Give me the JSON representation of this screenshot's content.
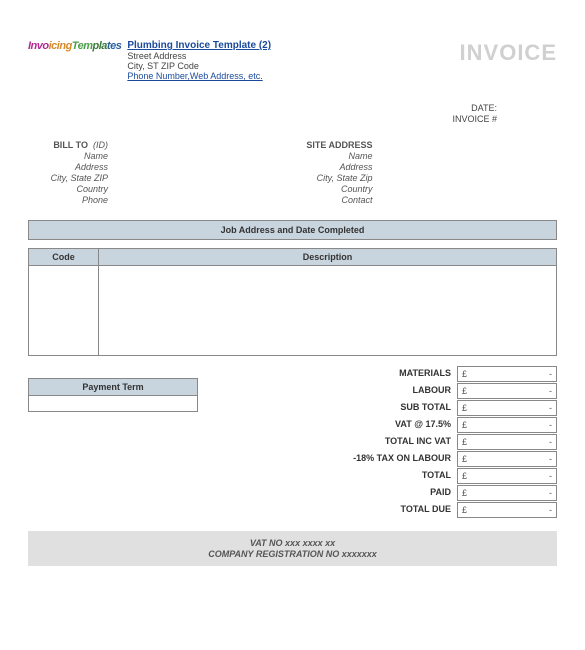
{
  "header": {
    "title": "Plumbing Invoice Template (2)",
    "street": "Street Address",
    "city_line": "City, ST  ZIP Code",
    "contact_link": "Phone Number,Web Address, etc.",
    "invoice_word": "INVOICE"
  },
  "meta": {
    "date_label": "DATE:",
    "invoice_no_label": "INVOICE #"
  },
  "bill_to": {
    "heading": "BILL TO",
    "id_label": "(ID)",
    "name_label": "Name",
    "address_label": "Address",
    "city_label": "City, State ZIP",
    "country_label": "Country",
    "phone_label": "Phone"
  },
  "site": {
    "heading": "SITE ADDRESS",
    "name_label": "Name",
    "address_label": "Address",
    "city_label": "City, State Zip",
    "country_label": "Country",
    "contact_label": "Contact"
  },
  "job_header": "Job Address and Date Completed",
  "columns": {
    "code": "Code",
    "description": "Description"
  },
  "payment_term_label": "Payment Term",
  "totals": {
    "materials": "MATERIALS",
    "labour": "LABOUR",
    "subtotal": "SUB TOTAL",
    "vat": "VAT @ 17.5%",
    "total_inc_vat": "TOTAL INC VAT",
    "tax_labour": "-18% TAX ON LABOUR",
    "total": "TOTAL",
    "paid": "PAID",
    "total_due": "TOTAL DUE",
    "currency": "£",
    "value": "-"
  },
  "footer": {
    "vat_line": "VAT NO  xxx xxxx xx",
    "reg_line": "COMPANY REGISTRATION NO xxxxxxx"
  },
  "colors": {
    "header_bg": "#c8d4de",
    "border": "#888888",
    "link": "#1a4a9c",
    "invoice_gray": "#d0d0d0",
    "footer_bg": "#e0e0e0"
  }
}
